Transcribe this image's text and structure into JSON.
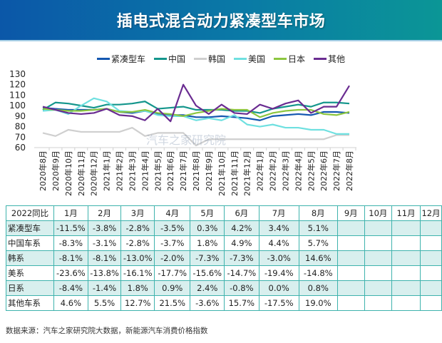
{
  "header": {
    "title": "插电式混合动力紧凑型车市场"
  },
  "watermark": "汽车之家研究院",
  "chart_data": {
    "type": "line",
    "categories": [
      "2020年8月",
      "2020年9月",
      "2020年10月",
      "2020年11月",
      "2020年12月",
      "2021年1月",
      "2021年2月",
      "2021年3月",
      "2021年4月",
      "2021年5月",
      "2021年6月",
      "2021年7月",
      "2021年8月",
      "2021年9月",
      "2021年10月",
      "2021年11月",
      "2021年12月",
      "2022年1月",
      "2022年2月",
      "2022年3月",
      "2022年4月",
      "2022年5月",
      "2022年6月",
      "2022年7月",
      "2022年8月"
    ],
    "ylim": [
      60,
      130
    ],
    "yticks": [
      60,
      70,
      80,
      90,
      100,
      110,
      120,
      130
    ],
    "legend_position": "top",
    "grid": false,
    "series": [
      {
        "name": "紧凑型车",
        "color": "#1457b0",
        "values": [
          98,
          97,
          96,
          96,
          96,
          97,
          94,
          93,
          95,
          92,
          91,
          91,
          89,
          89,
          90,
          89,
          88,
          86,
          90,
          91,
          92,
          91,
          94,
          94,
          93
        ]
      },
      {
        "name": "中国",
        "color": "#14968c",
        "values": [
          96,
          103,
          102,
          100,
          98,
          101,
          101,
          102,
          104,
          97,
          98,
          99,
          96,
          96,
          96,
          95,
          95,
          93,
          97,
          99,
          101,
          99,
          103,
          103,
          102
        ]
      },
      {
        "name": "韩国",
        "color": "#cfcfcf",
        "values": [
          74,
          71,
          77,
          75,
          75,
          75,
          75,
          79,
          71,
          74,
          74,
          74,
          62,
          68,
          68,
          68,
          68,
          68,
          68,
          68,
          68,
          68,
          68,
          72,
          72
        ]
      },
      {
        "name": "美国",
        "color": "#6fe0e0",
        "values": [
          95,
          96,
          92,
          100,
          107,
          104,
          95,
          94,
          95,
          91,
          90,
          90,
          86,
          88,
          86,
          91,
          82,
          80,
          82,
          79,
          79,
          77,
          77,
          73,
          73
        ]
      },
      {
        "name": "日本",
        "color": "#8cc63f",
        "values": [
          97,
          96,
          95,
          95,
          96,
          97,
          94,
          94,
          96,
          93,
          92,
          90,
          93,
          95,
          97,
          96,
          96,
          89,
          93,
          95,
          96,
          96,
          92,
          91,
          94
        ]
      },
      {
        "name": "其他",
        "color": "#6a2c91",
        "values": [
          99,
          96,
          93,
          92,
          93,
          97,
          91,
          90,
          86,
          97,
          85,
          120,
          100,
          92,
          101,
          93,
          92,
          101,
          97,
          102,
          105,
          93,
          99,
          99,
          119
        ]
      }
    ]
  },
  "table": {
    "corner": "2022同比",
    "months": [
      "1月",
      "2月",
      "3月",
      "4月",
      "5月",
      "6月",
      "7月",
      "8月",
      "9月",
      "10月",
      "11月",
      "12月"
    ],
    "rows": [
      {
        "label": "紧凑型车",
        "values": [
          "-11.5%",
          "-3.8%",
          "-2.8%",
          "-3.5%",
          "0.3%",
          "4.2%",
          "3.4%",
          "5.1%",
          "",
          "",
          "",
          ""
        ]
      },
      {
        "label": "中国车系",
        "values": [
          "-8.3%",
          "-3.1%",
          "-2.8%",
          "-3.7%",
          "1.8%",
          "4.9%",
          "4.4%",
          "5.7%",
          "",
          "",
          "",
          ""
        ]
      },
      {
        "label": "韩系",
        "values": [
          "-8.1%",
          "-8.1%",
          "-13.0%",
          "-2.0%",
          "-7.3%",
          "-7.3%",
          "-3.0%",
          "14.6%",
          "",
          "",
          "",
          ""
        ]
      },
      {
        "label": "美系",
        "values": [
          "-23.6%",
          "-13.8%",
          "-16.1%",
          "-17.7%",
          "-15.6%",
          "-14.7%",
          "-19.4%",
          "-14.8%",
          "",
          "",
          "",
          ""
        ]
      },
      {
        "label": "日系",
        "values": [
          "-8.4%",
          "-1.4%",
          "1.8%",
          "0.9%",
          "2.4%",
          "-0.8%",
          "0.0%",
          "0.8%",
          "",
          "",
          "",
          ""
        ]
      },
      {
        "label": "其他车系",
        "values": [
          "4.6%",
          "5.5%",
          "12.7%",
          "21.5%",
          "-3.6%",
          "15.7%",
          "-17.5%",
          "19.0%",
          "",
          "",
          "",
          ""
        ]
      }
    ]
  },
  "footer": {
    "source": "数据来源：汽车之家研究院大数据，新能源汽车消费价格指数"
  }
}
